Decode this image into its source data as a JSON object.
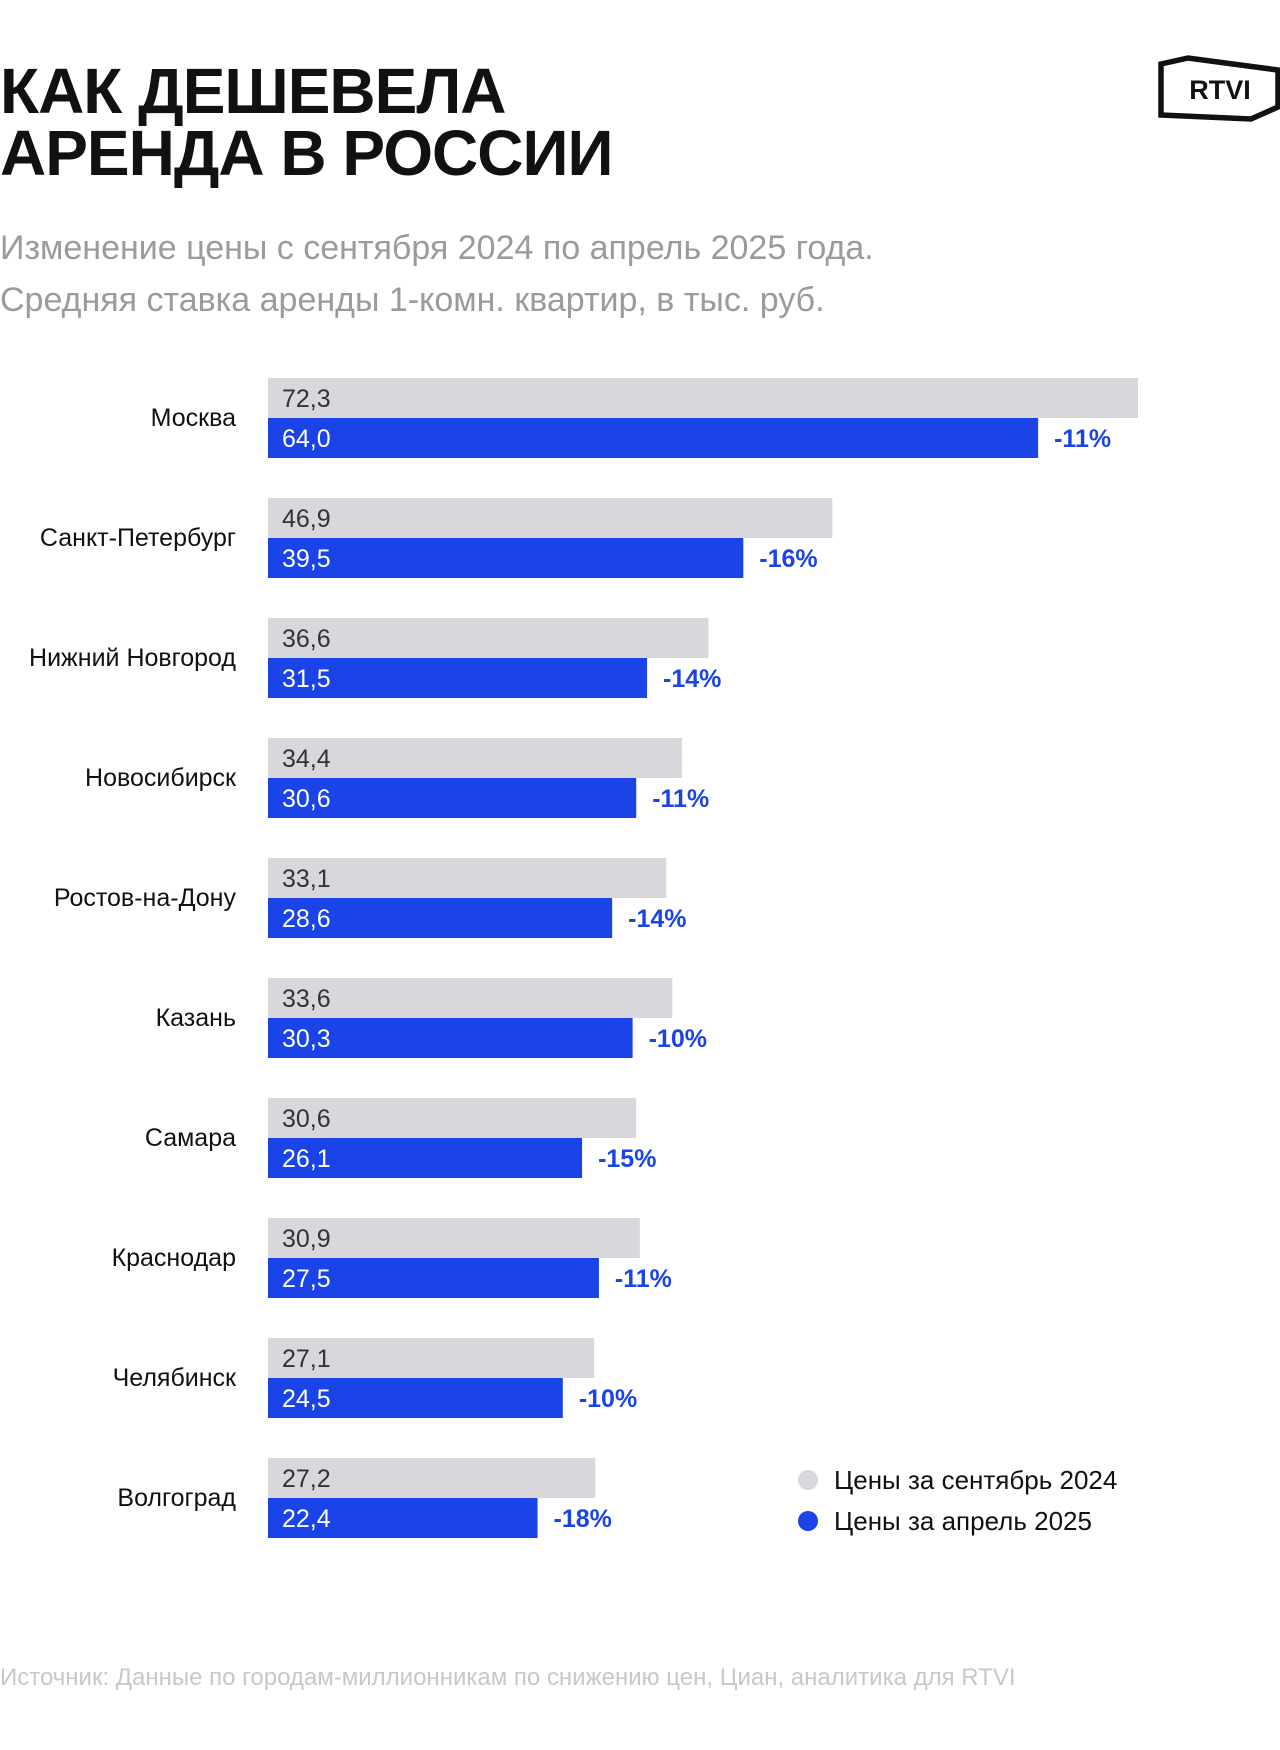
{
  "header": {
    "title_line1": "КАК ДЕШЕВЕЛА",
    "title_line2": "АРЕНДА В РОССИИ",
    "subtitle_line1": "Изменение цены с сентября 2024 по апрель 2025 года.",
    "subtitle_line2": "Средняя ставка аренды 1-комн. квартир, в тыс. руб."
  },
  "logo": {
    "text": "RTVI"
  },
  "footer": {
    "source": "Источник: Данные по городам-миллионникам по снижению цен, Циан, аналитика для RTVI"
  },
  "colors": {
    "september": "#d7d7dc",
    "april": "#1a44e8",
    "change": "#1a44e8",
    "value_on_gray": "#333333",
    "value_on_blue": "#ffffff"
  },
  "chart_data": {
    "type": "bar",
    "orientation": "horizontal",
    "categories": [
      "Москва",
      "Санкт-Петербург",
      "Нижний Новгород",
      "Новосибирск",
      "Ростов-на-Дону",
      "Казань",
      "Самара",
      "Краснодар",
      "Челябинск",
      "Волгоград"
    ],
    "series": [
      {
        "name": "Цены за сентябрь 2024",
        "values": [
          72.3,
          46.9,
          36.6,
          34.4,
          33.1,
          33.6,
          30.6,
          30.9,
          27.1,
          27.2
        ],
        "labels": [
          "72,3",
          "46,9",
          "36,6",
          "34,4",
          "33,1",
          "33,6",
          "30,6",
          "30,9",
          "27,1",
          "27,2"
        ]
      },
      {
        "name": "Цены за апрель 2025",
        "values": [
          64.0,
          39.5,
          31.5,
          30.6,
          28.6,
          30.3,
          26.1,
          27.5,
          24.5,
          22.4
        ],
        "labels": [
          "64,0",
          "39,5",
          "31,5",
          "30,6",
          "28,6",
          "30,3",
          "26,1",
          "27,5",
          "24,5",
          "22,4"
        ]
      }
    ],
    "changes": [
      "-11%",
      "-16%",
      "-14%",
      "-11%",
      "-14%",
      "-10%",
      "-15%",
      "-11%",
      "-10%",
      "-18%"
    ],
    "xlim": [
      0,
      72.3
    ],
    "grid": false,
    "legend": "bottom-right"
  }
}
